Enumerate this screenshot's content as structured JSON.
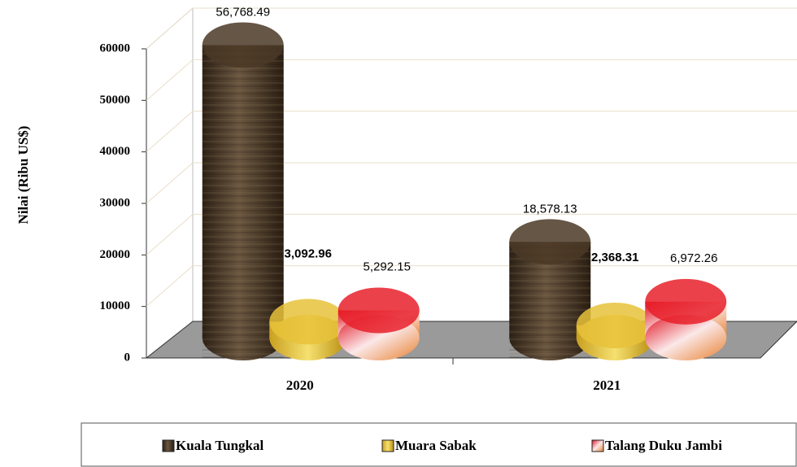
{
  "chart_data": {
    "type": "bar",
    "y_label": "Nilai (Ribu US$)",
    "categories": [
      "2020",
      "2021"
    ],
    "series": [
      {
        "name": "Kuala Tungkal",
        "color": "#4a3826",
        "values": [
          56768.49,
          18578.13
        ],
        "value_labels": [
          "56,768.49",
          "18,578.13"
        ]
      },
      {
        "name": "Muara Sabak",
        "color": "#e8c23a",
        "values": [
          3092.96,
          2368.31
        ],
        "value_labels": [
          "3,092.96",
          "2,368.31"
        ]
      },
      {
        "name": "Talang Duku Jambi",
        "color": "#e8202a",
        "values": [
          5292.15,
          6972.26
        ],
        "value_labels": [
          "5,292.15",
          "6,972.26"
        ]
      }
    ],
    "ylim": [
      0,
      60000
    ],
    "yticks": [
      0,
      10000,
      20000,
      30000,
      40000,
      50000,
      60000
    ],
    "grid": true
  }
}
